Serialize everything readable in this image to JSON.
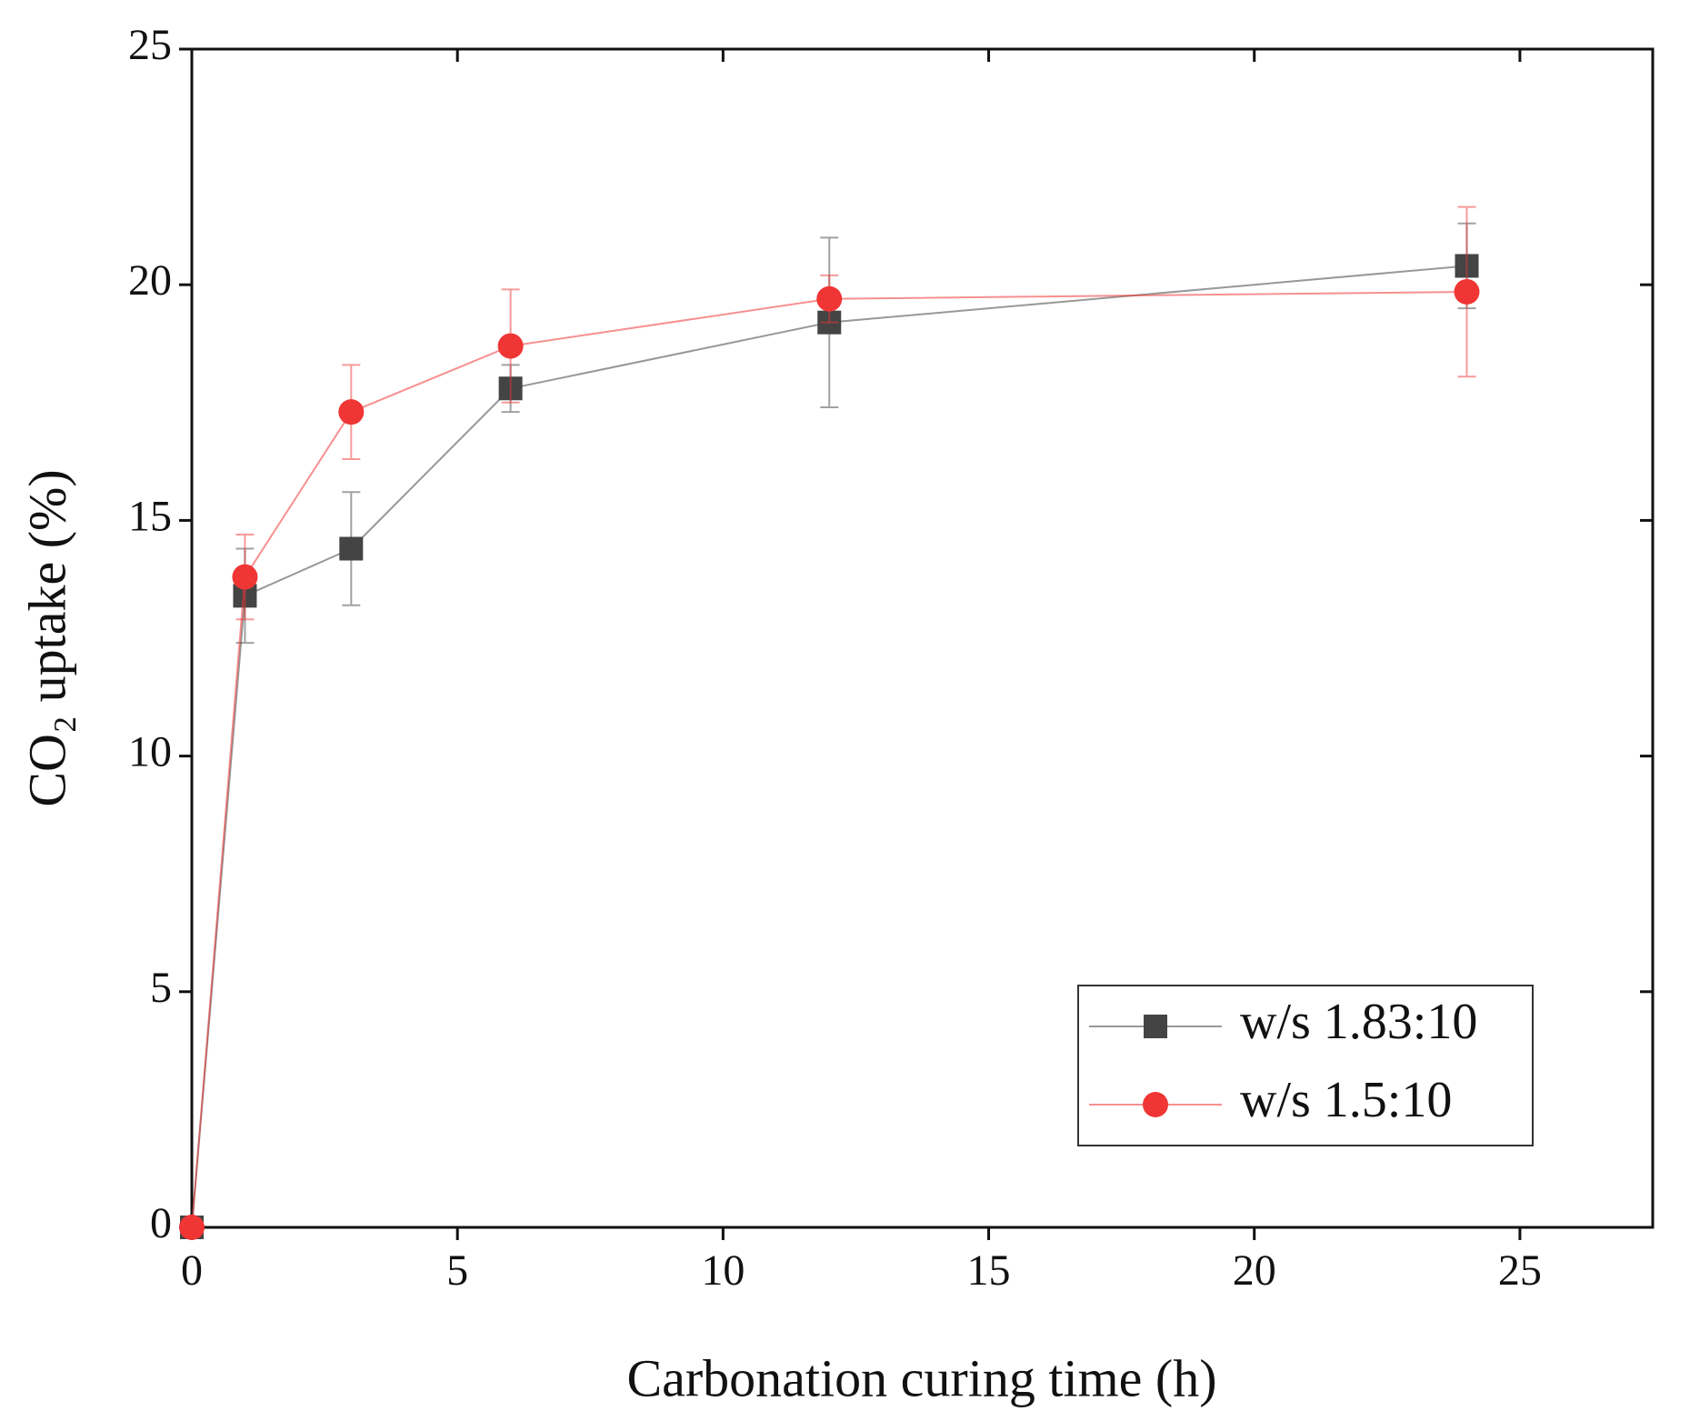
{
  "chart_data": {
    "type": "line",
    "x_label": "Carbonation curing time (h)",
    "y_label": "CO₂ uptake (%)",
    "x": [
      0,
      1,
      3,
      6,
      12,
      24
    ],
    "series": [
      {
        "name": "w/s 1.83:10",
        "color": "#444444",
        "marker": "square",
        "values": [
          0,
          13.4,
          14.4,
          17.8,
          19.2,
          20.4
        ],
        "errors": [
          0,
          1.0,
          1.2,
          0.5,
          1.8,
          0.9
        ]
      },
      {
        "name": "w/s 1.5:10",
        "color": "#f03535",
        "marker": "circle",
        "values": [
          0,
          13.8,
          17.3,
          18.7,
          19.7,
          19.85
        ],
        "errors": [
          0,
          0.9,
          1.0,
          1.2,
          0.5,
          1.8
        ]
      }
    ],
    "xlim": [
      0,
      27.5
    ],
    "xticks": [
      0,
      5,
      10,
      15,
      20,
      25
    ],
    "ylim": [
      0,
      25
    ],
    "yticks": [
      0,
      5,
      10,
      15,
      20,
      25
    ],
    "grid": false,
    "legend": "lower right"
  }
}
